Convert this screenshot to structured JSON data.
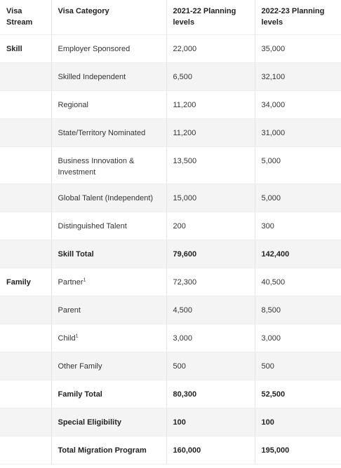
{
  "table": {
    "header": [
      "Visa Stream",
      "Visa Category",
      "2021-22 Planning levels",
      "2022-23 Planning levels"
    ],
    "rows": [
      [
        "Skill",
        "Employer Sponsored",
        "22,000",
        "35,000"
      ],
      [
        null,
        "Skilled Independent",
        "6,500",
        "32,100"
      ],
      [
        null,
        "Regional",
        "11,200",
        "34,000"
      ],
      [
        null,
        "State/Territory Nominated",
        "11,200",
        "31,000"
      ],
      [
        null,
        "Business Innovation & Investment",
        "13,500",
        "5,000"
      ],
      [
        null,
        "Global Talent (Independent)",
        "15,000",
        "5,000"
      ],
      [
        null,
        "Distinguished Talent",
        "200",
        "300"
      ],
      [
        null,
        "Skill Total",
        "79,600",
        "142,400"
      ],
      [
        "Family",
        {
          "text": "Partner",
          "sup": "1"
        },
        "72,300",
        "40,500"
      ],
      [
        null,
        "Parent",
        "4,500",
        "8,500"
      ],
      [
        null,
        {
          "text": "Child",
          "sup": "1"
        },
        "3,000",
        "3,000"
      ],
      [
        null,
        "Other Family",
        "500",
        "500"
      ],
      [
        null,
        "Family Total",
        "80,300",
        "52,500"
      ],
      [
        null,
        "Special Eligibility",
        "100",
        "100"
      ],
      [
        null,
        "Total Migration Program",
        "160,000",
        "195,000"
      ]
    ]
  }
}
